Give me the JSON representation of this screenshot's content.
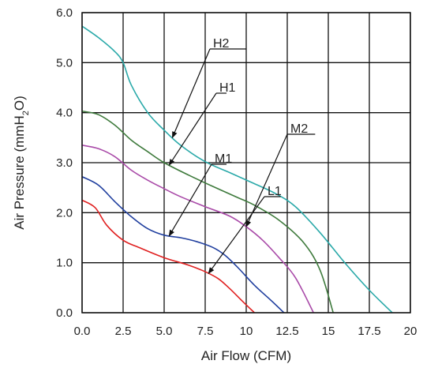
{
  "chart_data": {
    "type": "line",
    "xlabel": "Air Flow (CFM)",
    "ylabel": {
      "prefix": "Air Pressure (mmH",
      "subscript": "2",
      "suffix": "O)"
    },
    "xlim": [
      0,
      20
    ],
    "ylim": [
      0,
      6
    ],
    "xticks": [
      0,
      2.5,
      5,
      7.5,
      10,
      12.5,
      15,
      17.5,
      20
    ],
    "yticks": [
      0,
      1,
      2,
      3,
      4,
      5,
      6
    ],
    "xtick_labels": [
      "0.0",
      "2.5",
      "5.0",
      "7.5",
      "10",
      "12.5",
      "15",
      "17.5",
      "20"
    ],
    "ytick_labels": [
      "0.0",
      "1.0",
      "2.0",
      "3.0",
      "4.0",
      "5.0",
      "6.0"
    ],
    "grid": true,
    "series": [
      {
        "name": "H2",
        "color": "#2aa9a9",
        "points": [
          [
            0,
            5.73
          ],
          [
            1.0,
            5.5
          ],
          [
            2.0,
            5.22
          ],
          [
            2.5,
            5.0
          ],
          [
            3.0,
            4.55
          ],
          [
            4.0,
            4.0
          ],
          [
            5.0,
            3.65
          ],
          [
            6.0,
            3.35
          ],
          [
            7.5,
            3.02
          ],
          [
            9.0,
            2.8
          ],
          [
            10.5,
            2.58
          ],
          [
            11.8,
            2.38
          ],
          [
            13.0,
            2.12
          ],
          [
            14.5,
            1.6
          ],
          [
            16.0,
            1.0
          ],
          [
            17.5,
            0.45
          ],
          [
            18.9,
            0
          ]
        ]
      },
      {
        "name": "H1",
        "color": "#3e7a3c",
        "points": [
          [
            0,
            4.03
          ],
          [
            1.0,
            3.96
          ],
          [
            2.0,
            3.75
          ],
          [
            3.0,
            3.45
          ],
          [
            4.0,
            3.22
          ],
          [
            5.0,
            3.0
          ],
          [
            6.5,
            2.75
          ],
          [
            8.0,
            2.52
          ],
          [
            9.5,
            2.3
          ],
          [
            10.5,
            2.15
          ],
          [
            12.0,
            1.85
          ],
          [
            13.5,
            1.4
          ],
          [
            14.5,
            0.85
          ],
          [
            15.3,
            0
          ]
        ]
      },
      {
        "name": "M2",
        "color": "#a94aa8",
        "points": [
          [
            0,
            3.35
          ],
          [
            1.0,
            3.28
          ],
          [
            2.0,
            3.12
          ],
          [
            3.0,
            2.85
          ],
          [
            4.0,
            2.65
          ],
          [
            5.0,
            2.48
          ],
          [
            6.0,
            2.32
          ],
          [
            7.5,
            2.12
          ],
          [
            9.0,
            1.93
          ],
          [
            10.0,
            1.72
          ],
          [
            11.0,
            1.45
          ],
          [
            12.0,
            1.1
          ],
          [
            13.0,
            0.7
          ],
          [
            14.1,
            0
          ]
        ]
      },
      {
        "name": "M1",
        "color": "#1f3e9e",
        "points": [
          [
            0,
            2.72
          ],
          [
            1.0,
            2.55
          ],
          [
            2.0,
            2.22
          ],
          [
            3.0,
            1.92
          ],
          [
            4.0,
            1.68
          ],
          [
            5.0,
            1.55
          ],
          [
            6.0,
            1.5
          ],
          [
            7.0,
            1.42
          ],
          [
            8.0,
            1.3
          ],
          [
            8.7,
            1.15
          ],
          [
            9.5,
            0.9
          ],
          [
            10.5,
            0.55
          ],
          [
            11.5,
            0.25
          ],
          [
            12.3,
            0
          ]
        ]
      },
      {
        "name": "L1",
        "color": "#e02020",
        "points": [
          [
            0,
            2.25
          ],
          [
            0.8,
            2.1
          ],
          [
            1.5,
            1.75
          ],
          [
            2.5,
            1.45
          ],
          [
            3.5,
            1.3
          ],
          [
            5.0,
            1.1
          ],
          [
            6.5,
            0.95
          ],
          [
            7.5,
            0.82
          ],
          [
            8.3,
            0.68
          ],
          [
            9.0,
            0.48
          ],
          [
            9.8,
            0.22
          ],
          [
            10.5,
            0
          ]
        ]
      }
    ],
    "callouts": [
      {
        "series": "H2",
        "label": "H2"
      },
      {
        "series": "H1",
        "label": "H1"
      },
      {
        "series": "M2",
        "label": "M2"
      },
      {
        "series": "M1",
        "label": "M1"
      },
      {
        "series": "L1",
        "label": "L1"
      }
    ]
  }
}
